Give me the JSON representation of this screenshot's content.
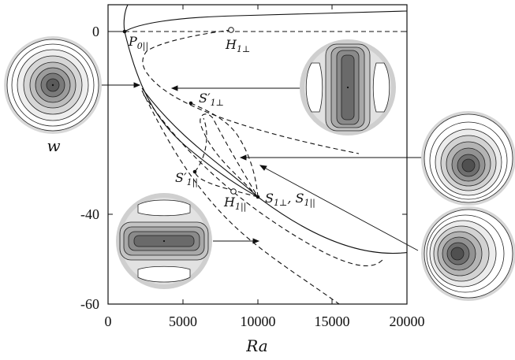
{
  "axes": {
    "xlabel": "Ra",
    "ylabel": "w",
    "xlim": [
      0,
      20000
    ],
    "ylim": [
      -60,
      0
    ],
    "xticks": [
      "0",
      "5000",
      "10000",
      "15000",
      "20000"
    ],
    "yticks": [
      "0",
      "-40",
      "-60"
    ]
  },
  "labels": {
    "p0": {
      "base": "P",
      "sub": "0||"
    },
    "h1perp": {
      "base": "H",
      "sub": "1⊥"
    },
    "s1perp_prime": {
      "base": "S′",
      "sub": "1⊥"
    },
    "s1par_prime": {
      "base": "S′",
      "sub": "1||"
    },
    "h1par": {
      "base": "H",
      "sub": "1||"
    },
    "s1_pair": {
      "a_base": "S",
      "a_sub": "1⊥",
      "sep": ", ",
      "b_base": "S",
      "b_sub": "1||"
    }
  },
  "colors": {
    "curve": "#111111",
    "contour_dark": "#444444",
    "contour_light": "#f4f4f4",
    "halo": "#cfcfcf"
  }
}
